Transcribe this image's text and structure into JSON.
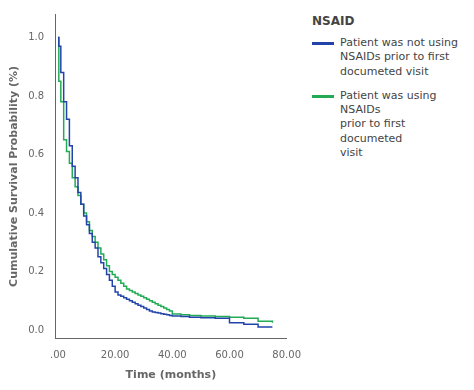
{
  "chart_data": {
    "type": "step",
    "x_label": "Time (months)",
    "y_label": "Cumulative Survival Probability (%)",
    "legend_title": "NSAID",
    "legend": "right",
    "grid": false,
    "xlim": [
      -1,
      80
    ],
    "ylim": [
      -0.03,
      1.08
    ],
    "xticks": [
      {
        "value": 0,
        "label": ".00"
      },
      {
        "value": 20,
        "label": "20.00"
      },
      {
        "value": 40,
        "label": "40.00"
      },
      {
        "value": 60,
        "label": "60.00"
      },
      {
        "value": 80,
        "label": "80.00"
      }
    ],
    "yticks": [
      {
        "value": 0,
        "label": "0.0"
      },
      0.2,
      0.4,
      0.6,
      0.8,
      {
        "value": 1,
        "label": "1.0"
      }
    ],
    "x": [
      0,
      0.3,
      1.0,
      2.0,
      3.0,
      4.0,
      5.0,
      6.0,
      7.0,
      8.0,
      9.0,
      10.0,
      11.0,
      12.0,
      13.0,
      14.0,
      15.0,
      16.0,
      17.0,
      18.0,
      19.0,
      20.0,
      21.0,
      22.0,
      23.0,
      24.0,
      25.0,
      26.0,
      27.0,
      28.0,
      29.0,
      30.0,
      31.0,
      32.0,
      33.0,
      34.0,
      35.0,
      36.0,
      37.0,
      38.0,
      39.0,
      40.0,
      43.0,
      46.0,
      50.0,
      55.0,
      60.0,
      65.0,
      70.0,
      75.0
    ],
    "series": [
      {
        "name": "Patient was not using\nNSAIDs prior to first\ndocumeted visit",
        "color": "#2244aa",
        "values": [
          1.0,
          0.97,
          0.88,
          0.78,
          0.72,
          0.63,
          0.56,
          0.52,
          0.47,
          0.43,
          0.39,
          0.36,
          0.33,
          0.3,
          0.28,
          0.25,
          0.23,
          0.21,
          0.19,
          0.17,
          0.15,
          0.13,
          0.12,
          0.115,
          0.11,
          0.105,
          0.1,
          0.095,
          0.09,
          0.085,
          0.08,
          0.075,
          0.07,
          0.065,
          0.062,
          0.06,
          0.058,
          0.056,
          0.054,
          0.052,
          0.05,
          0.048,
          0.046,
          0.044,
          0.042,
          0.04,
          0.025,
          0.02,
          0.01,
          0.01
        ]
      },
      {
        "name": "Patient was using NSAIDs\nprior to first documeted\nvisit",
        "color": "#22aa55",
        "values": [
          1.0,
          0.85,
          0.78,
          0.65,
          0.61,
          0.57,
          0.52,
          0.49,
          0.46,
          0.43,
          0.4,
          0.37,
          0.34,
          0.32,
          0.3,
          0.28,
          0.26,
          0.24,
          0.22,
          0.2,
          0.19,
          0.18,
          0.17,
          0.16,
          0.15,
          0.14,
          0.135,
          0.13,
          0.125,
          0.12,
          0.115,
          0.11,
          0.105,
          0.1,
          0.095,
          0.09,
          0.085,
          0.08,
          0.075,
          0.07,
          0.065,
          0.055,
          0.052,
          0.05,
          0.048,
          0.046,
          0.044,
          0.04,
          0.03,
          0.025
        ]
      }
    ]
  }
}
